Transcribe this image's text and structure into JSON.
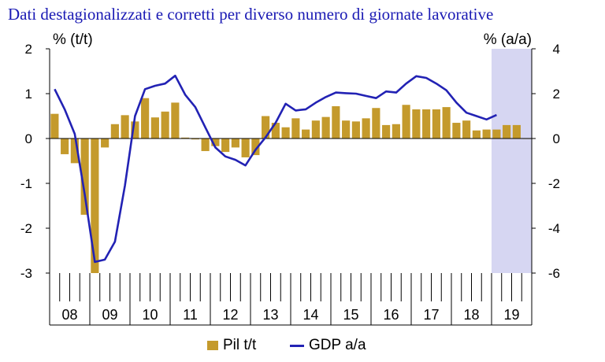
{
  "subtitle": "Dati destagionalizzati e corretti per diverso numero di giornate lavorative",
  "colors": {
    "bar": "#c49a2c",
    "line": "#2222b4",
    "forecast_shade": "#d6d6f2",
    "subtitle": "#1a1ab4"
  },
  "chart_data": {
    "type": "bar+line",
    "left_axis_label": "% (t/t)",
    "right_axis_label": "% (a/a)",
    "left_ylim": [
      -3,
      2
    ],
    "right_ylim": [
      -6,
      4
    ],
    "left_ticks": [
      "2",
      "1",
      "0",
      "-1",
      "-2",
      "-3"
    ],
    "right_ticks": [
      "4",
      "2",
      "0",
      "-2",
      "-4",
      "-6"
    ],
    "year_labels": [
      "08",
      "09",
      "10",
      "11",
      "12",
      "13",
      "14",
      "15",
      "16",
      "17",
      "18",
      "19"
    ],
    "quarters": [
      "08Q1",
      "08Q2",
      "08Q3",
      "08Q4",
      "09Q1",
      "09Q2",
      "09Q3",
      "09Q4",
      "10Q1",
      "10Q2",
      "10Q3",
      "10Q4",
      "11Q1",
      "11Q2",
      "11Q3",
      "11Q4",
      "12Q1",
      "12Q2",
      "12Q3",
      "12Q4",
      "13Q1",
      "13Q2",
      "13Q3",
      "13Q4",
      "14Q1",
      "14Q2",
      "14Q3",
      "14Q4",
      "15Q1",
      "15Q2",
      "15Q3",
      "15Q4",
      "16Q1",
      "16Q2",
      "16Q3",
      "16Q4",
      "17Q1",
      "17Q2",
      "17Q3",
      "17Q4",
      "18Q1",
      "18Q2",
      "18Q3",
      "18Q4",
      "19Q1",
      "19Q2",
      "19Q3",
      "19Q4"
    ],
    "forecast_shaded_from": "19Q1",
    "series": [
      {
        "name": "Pil t/t",
        "type": "bar",
        "axis": "left",
        "values": [
          0.55,
          -0.35,
          -0.55,
          -1.7,
          -3.0,
          -0.2,
          0.32,
          0.52,
          0.38,
          0.9,
          0.47,
          0.6,
          0.8,
          0.02,
          -0.02,
          -0.28,
          -0.17,
          -0.3,
          -0.2,
          -0.42,
          -0.37,
          0.5,
          0.35,
          0.25,
          0.45,
          0.2,
          0.4,
          0.48,
          0.72,
          0.4,
          0.38,
          0.45,
          0.68,
          0.3,
          0.32,
          0.75,
          0.65,
          0.65,
          0.65,
          0.7,
          0.35,
          0.4,
          0.18,
          0.2,
          0.2,
          0.3,
          0.3,
          0.0
        ]
      },
      {
        "name": "GDP a/a",
        "type": "line",
        "axis": "right",
        "values": [
          2.2,
          1.3,
          0.2,
          -2.5,
          -5.5,
          -5.4,
          -4.6,
          -2.1,
          1.0,
          2.2,
          2.35,
          2.45,
          2.8,
          1.95,
          1.4,
          0.5,
          -0.4,
          -0.8,
          -0.95,
          -1.2,
          -0.5,
          0.05,
          0.7,
          1.55,
          1.25,
          1.3,
          1.6,
          1.85,
          2.05,
          2.02,
          2.0,
          1.9,
          1.8,
          2.1,
          2.05,
          2.45,
          2.78,
          2.7,
          2.45,
          2.15,
          1.6,
          1.15,
          1.0,
          0.85,
          1.05,
          null,
          null,
          null
        ]
      }
    ],
    "legend_position": "bottom",
    "grid": false
  }
}
